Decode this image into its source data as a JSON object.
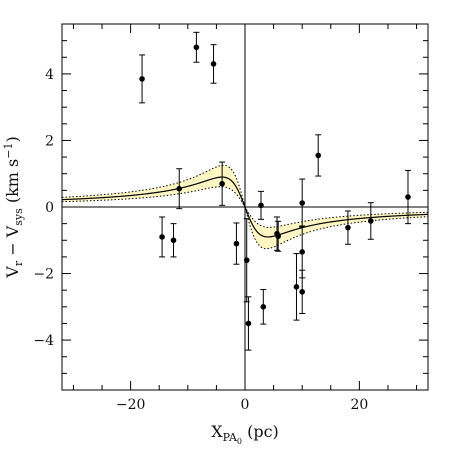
{
  "chart_data": {
    "type": "scatter",
    "title": "",
    "xlabel": {
      "main": "X",
      "sub": "PA",
      "subsub": "0",
      "unit": " (pc)"
    },
    "ylabel": {
      "part1": "V",
      "sub1": "r",
      "part2": " − V",
      "sub2": "sys",
      "part3": " (km s",
      "sup": "−1",
      "part4": ")"
    },
    "xlim": [
      -32,
      32
    ],
    "ylim": [
      -5.5,
      5.5
    ],
    "xticks": [
      -20,
      0,
      20
    ],
    "xtick_labels": [
      "−20",
      "0",
      "20"
    ],
    "yticks": [
      -4,
      -2,
      0,
      2,
      4
    ],
    "ytick_labels": [
      "−4",
      "−2",
      "0",
      "2",
      "4"
    ],
    "grid": false,
    "reference_lines": {
      "x": 0,
      "y": 0
    },
    "points": [
      {
        "x": -18.0,
        "y": 3.85,
        "err": 0.72
      },
      {
        "x": -8.5,
        "y": 4.8,
        "err": 0.45
      },
      {
        "x": -5.5,
        "y": 4.3,
        "err": 0.58
      },
      {
        "x": -11.5,
        "y": 0.55,
        "err": 0.6
      },
      {
        "x": -14.5,
        "y": -0.9,
        "err": 0.6
      },
      {
        "x": -12.5,
        "y": -1.0,
        "err": 0.5
      },
      {
        "x": -4.0,
        "y": 0.7,
        "err": 0.65
      },
      {
        "x": -1.5,
        "y": -1.1,
        "err": 0.62
      },
      {
        "x": 0.3,
        "y": -1.6,
        "err": 1.25
      },
      {
        "x": 0.6,
        "y": -3.5,
        "err": 0.8
      },
      {
        "x": 2.8,
        "y": 0.05,
        "err": 0.42
      },
      {
        "x": 3.2,
        "y": -3.0,
        "err": 0.52
      },
      {
        "x": 5.6,
        "y": -0.8,
        "err": 0.5
      },
      {
        "x": 5.8,
        "y": -0.88,
        "err": 0.45
      },
      {
        "x": 9.0,
        "y": -2.4,
        "err": 1.0
      },
      {
        "x": 10.0,
        "y": 0.12,
        "err": 0.72
      },
      {
        "x": 10.0,
        "y": -1.35,
        "err": 0.78
      },
      {
        "x": 10.0,
        "y": -2.55,
        "err": 0.65
      },
      {
        "x": 12.8,
        "y": 1.55,
        "err": 0.62
      },
      {
        "x": 18.0,
        "y": -0.62,
        "err": 0.5
      },
      {
        "x": 22.0,
        "y": -0.42,
        "err": 0.55
      },
      {
        "x": 28.5,
        "y": 0.3,
        "err": 0.8
      }
    ],
    "model": {
      "form": "a*x/(x^2+b^2)",
      "center": {
        "a": -7.2,
        "b": 4.0
      },
      "upper": {
        "a": -9.4,
        "b": 3.75
      },
      "lower": {
        "a": -5.2,
        "b": 4.25
      }
    },
    "colors": {
      "band_fill": "#fff6c4",
      "band_edge": "#000000",
      "model_line": "#000000",
      "points": "#000000",
      "axes": "#000000",
      "background": "#ffffff"
    }
  }
}
